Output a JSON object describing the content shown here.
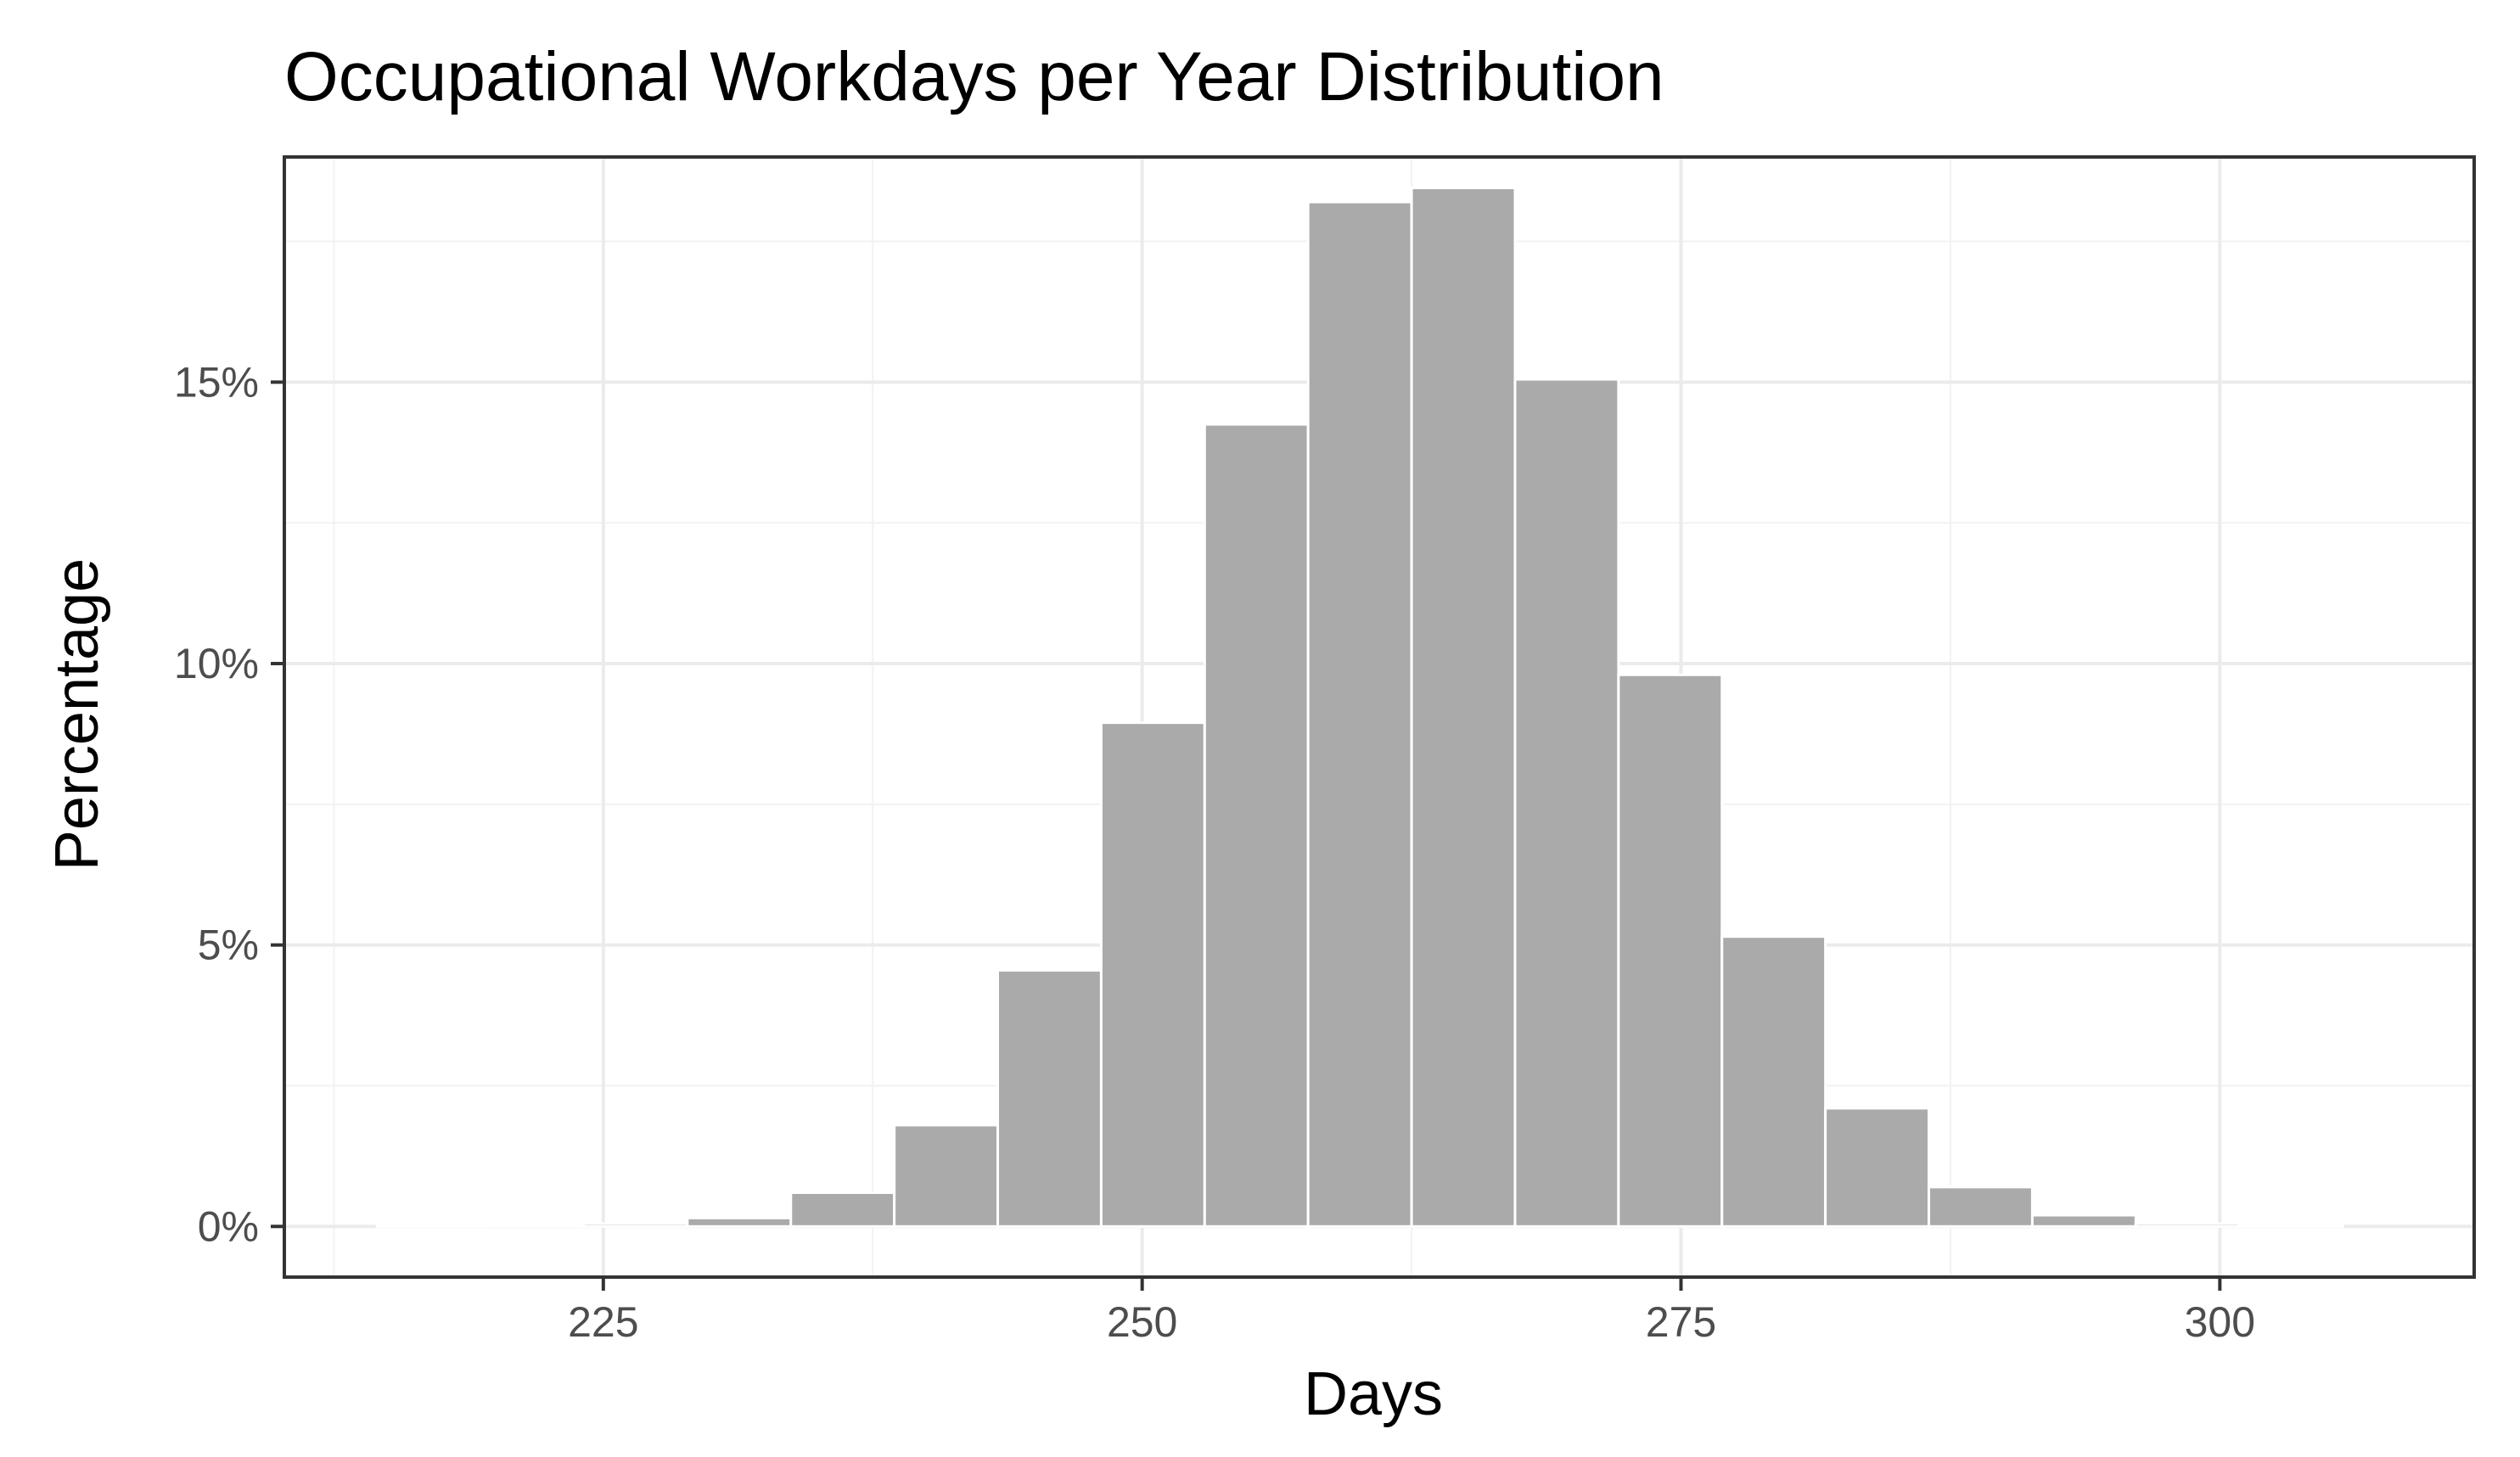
{
  "chart_data": {
    "type": "bar",
    "title": "Occupational Workdays per Year Distribution",
    "xlabel": "Days",
    "ylabel": "Percentage",
    "xlim": [
      210.2,
      311.8
    ],
    "ylim": [
      -0.9,
      19.0
    ],
    "x_ticks": [
      225,
      250,
      275,
      300
    ],
    "x_tick_labels": [
      "225",
      "250",
      "275",
      "300"
    ],
    "y_ticks": [
      0,
      5,
      10,
      15
    ],
    "y_tick_labels": [
      "0%",
      "5%",
      "10%",
      "15%"
    ],
    "grid": true,
    "legend": "none",
    "bin_width": 4.8,
    "bin_starts": [
      214.5,
      219.3,
      224.1,
      228.9,
      233.7,
      238.5,
      243.3,
      248.1,
      252.9,
      257.7,
      262.5,
      267.3,
      272.1,
      276.9,
      281.7,
      286.5,
      291.3,
      296.1,
      300.9
    ],
    "values": [
      0.02,
      0.03,
      0.05,
      0.15,
      0.6,
      1.8,
      4.55,
      8.95,
      14.25,
      18.2,
      18.45,
      15.05,
      9.8,
      5.15,
      2.1,
      0.7,
      0.2,
      0.05,
      0.02
    ],
    "colors": {
      "bar_fill": "#aaaaaa",
      "bar_stroke": "#ffffff",
      "panel_border": "#333333",
      "grid_major": "#ebebeb",
      "grid_minor": "#f2f2f2",
      "tick_text": "#4d4d4d"
    }
  }
}
